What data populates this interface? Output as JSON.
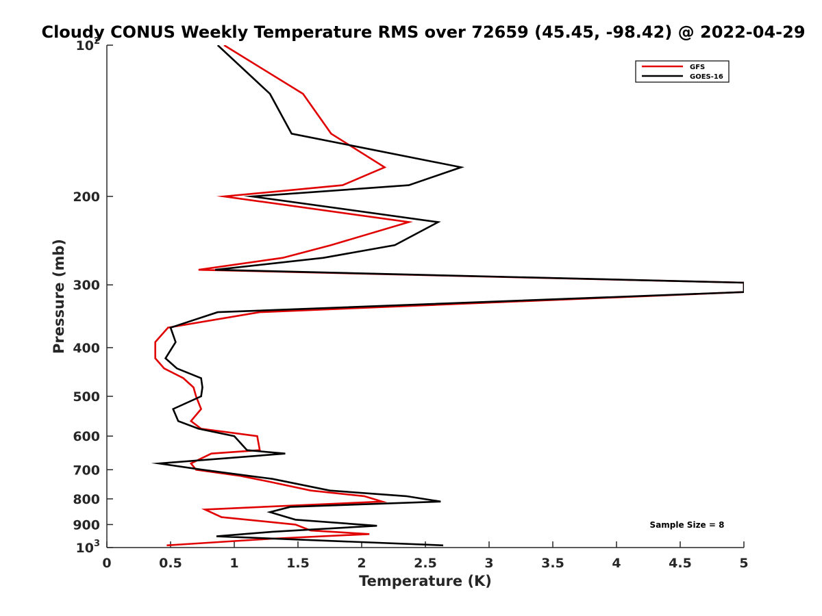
{
  "chart_data": {
    "type": "line",
    "title": "Cloudy CONUS Weekly Temperature RMS over 72659 (45.45, -98.42) @ 2022-04-29",
    "xlabel": "Temperature (K)",
    "ylabel": "Pressure (mb)",
    "xlim": [
      0,
      5
    ],
    "ylim": [
      100,
      1000
    ],
    "y_scale": "log",
    "y_reversed": true,
    "grid": false,
    "legend_position": "top-right",
    "x_ticks": [
      "0",
      "0.5",
      "1",
      "1.5",
      "2",
      "2.5",
      "3",
      "3.5",
      "4",
      "4.5",
      "5"
    ],
    "y_ticks": [
      {
        "value": 100,
        "base": "10",
        "exp": "2"
      },
      {
        "value": 200,
        "label": "200"
      },
      {
        "value": 300,
        "label": "300"
      },
      {
        "value": 400,
        "label": "400"
      },
      {
        "value": 500,
        "label": "500"
      },
      {
        "value": 600,
        "label": "600"
      },
      {
        "value": 700,
        "label": "700"
      },
      {
        "value": 800,
        "label": "800"
      },
      {
        "value": 900,
        "label": "900"
      },
      {
        "value": 1000,
        "base": "10",
        "exp": "3"
      }
    ],
    "annotation": "Sample Size = 8",
    "series": [
      {
        "name": "GFS",
        "color": "#e00000",
        "points": [
          [
            0.92,
            100
          ],
          [
            1.54,
            125
          ],
          [
            1.76,
            150
          ],
          [
            2.18,
            175
          ],
          [
            1.85,
            190
          ],
          [
            0.92,
            200
          ],
          [
            2.37,
            225
          ],
          [
            1.76,
            250
          ],
          [
            1.38,
            265
          ],
          [
            0.72,
            280
          ],
          [
            5.0,
            297
          ],
          [
            5.0,
            310
          ],
          [
            1.2,
            340
          ],
          [
            0.48,
            365
          ],
          [
            0.38,
            390
          ],
          [
            0.38,
            420
          ],
          [
            0.45,
            440
          ],
          [
            0.6,
            460
          ],
          [
            0.68,
            480
          ],
          [
            0.7,
            500
          ],
          [
            0.74,
            530
          ],
          [
            0.66,
            560
          ],
          [
            0.74,
            580
          ],
          [
            1.18,
            600
          ],
          [
            1.2,
            640
          ],
          [
            0.82,
            650
          ],
          [
            0.66,
            680
          ],
          [
            0.7,
            700
          ],
          [
            1.05,
            720
          ],
          [
            1.28,
            740
          ],
          [
            1.6,
            770
          ],
          [
            2.02,
            790
          ],
          [
            2.16,
            810
          ],
          [
            0.77,
            840
          ],
          [
            0.9,
            870
          ],
          [
            1.48,
            900
          ],
          [
            1.6,
            925
          ],
          [
            2.06,
            940
          ],
          [
            1.3,
            960
          ],
          [
            0.47,
            990
          ]
        ]
      },
      {
        "name": "GOES-16",
        "color": "#000000",
        "points": [
          [
            0.87,
            100
          ],
          [
            1.28,
            125
          ],
          [
            1.45,
            150
          ],
          [
            2.78,
            175
          ],
          [
            2.37,
            190
          ],
          [
            1.14,
            200
          ],
          [
            2.6,
            225
          ],
          [
            2.26,
            250
          ],
          [
            1.7,
            265
          ],
          [
            0.85,
            280
          ],
          [
            5.0,
            297
          ],
          [
            5.0,
            310
          ],
          [
            0.87,
            340
          ],
          [
            0.5,
            365
          ],
          [
            0.54,
            390
          ],
          [
            0.46,
            420
          ],
          [
            0.55,
            440
          ],
          [
            0.74,
            460
          ],
          [
            0.75,
            480
          ],
          [
            0.74,
            500
          ],
          [
            0.52,
            530
          ],
          [
            0.56,
            560
          ],
          [
            0.72,
            580
          ],
          [
            1.0,
            600
          ],
          [
            1.1,
            640
          ],
          [
            1.4,
            650
          ],
          [
            0.41,
            680
          ],
          [
            0.75,
            700
          ],
          [
            1.3,
            730
          ],
          [
            1.75,
            770
          ],
          [
            2.35,
            790
          ],
          [
            2.62,
            810
          ],
          [
            1.44,
            830
          ],
          [
            1.28,
            850
          ],
          [
            1.48,
            880
          ],
          [
            2.12,
            905
          ],
          [
            1.3,
            930
          ],
          [
            0.86,
            950
          ],
          [
            2.64,
            990
          ]
        ]
      }
    ]
  }
}
